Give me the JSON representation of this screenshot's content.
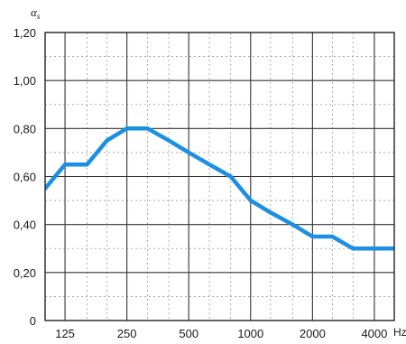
{
  "chart_data": {
    "type": "line",
    "ylabel": "αs",
    "ylabel_main": "α",
    "ylabel_sub": "s",
    "xunit": "Hz",
    "x_scale": "log2",
    "x_major_ticks": [
      "125",
      "250",
      "500",
      "1000",
      "2000",
      "4000"
    ],
    "y_ticks": [
      "0",
      "0,20",
      "0,40",
      "0,60",
      "0,80",
      "1,00",
      "1,20"
    ],
    "ylim": [
      0,
      1.2
    ],
    "xlim_hz": [
      100,
      5000
    ],
    "grid": true,
    "series": [
      {
        "x": [
          100,
          125,
          160,
          200,
          250,
          315,
          400,
          500,
          630,
          800,
          1000,
          1250,
          1600,
          2000,
          2500,
          3150,
          4000,
          5000
        ],
        "values": [
          0.55,
          0.65,
          0.65,
          0.75,
          0.8,
          0.8,
          0.75,
          0.7,
          0.65,
          0.6,
          0.5,
          0.45,
          0.4,
          0.35,
          0.35,
          0.3,
          0.3,
          0.3
        ],
        "color": "#1a8fe3"
      }
    ]
  }
}
